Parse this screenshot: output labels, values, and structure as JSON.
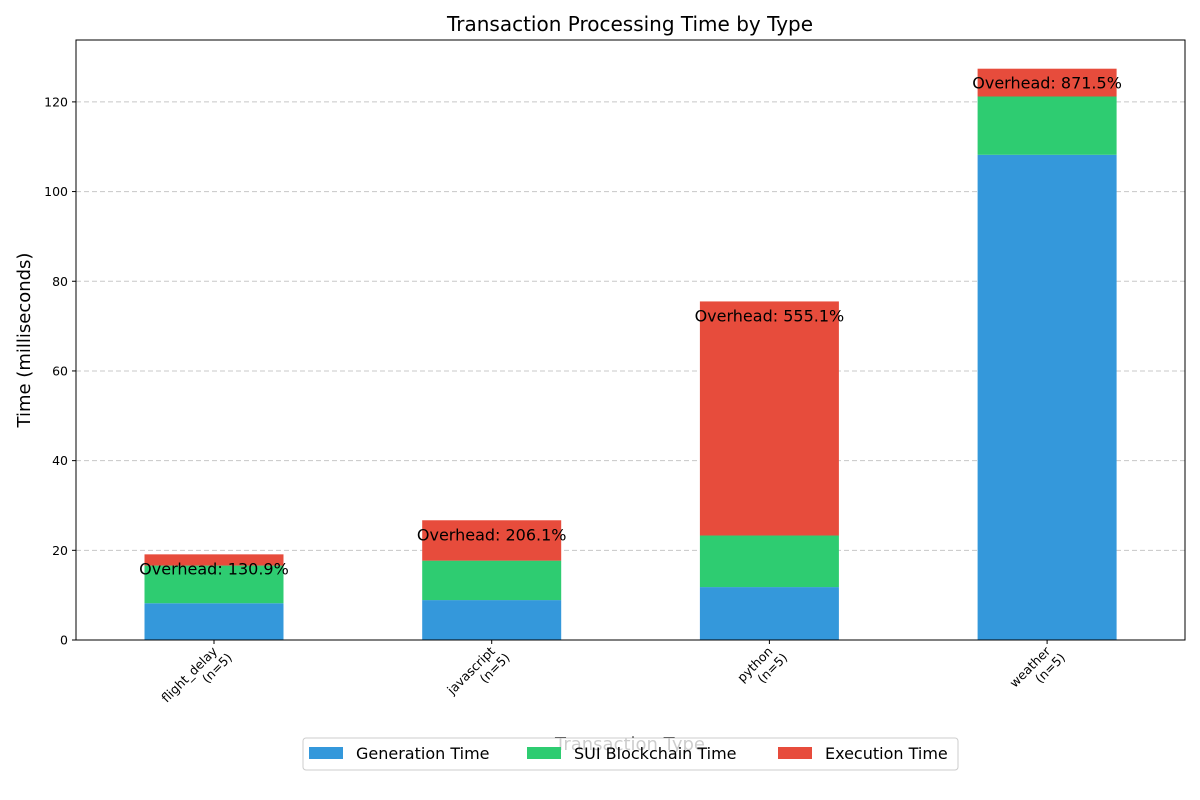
{
  "chart_data": {
    "type": "bar",
    "stacked": true,
    "title": "Transaction Processing Time by Type",
    "xlabel": "Transaction Type",
    "ylabel": "Time (milliseconds)",
    "categories": [
      "flight_delay\n(n=5)",
      "javascript\n(n=5)",
      "python\n(n=5)",
      "weather\n(n=5)"
    ],
    "series": [
      {
        "name": "Generation Time",
        "color": "#3498db",
        "values": [
          8.2,
          8.9,
          11.8,
          108.2
        ]
      },
      {
        "name": "SUI Blockchain Time",
        "color": "#2ecc71",
        "values": [
          8.4,
          8.8,
          11.5,
          13.0
        ]
      },
      {
        "name": "Execution Time",
        "color": "#e74c3c",
        "values": [
          2.5,
          9.0,
          52.2,
          6.2
        ]
      }
    ],
    "annotations": [
      "Overhead: 130.9%",
      "Overhead: 206.1%",
      "Overhead: 555.1%",
      "Overhead: 871.5%"
    ],
    "ylim": [
      0,
      133.8
    ],
    "yticks": [
      0,
      20,
      40,
      60,
      80,
      100,
      120
    ],
    "grid": "y",
    "legend": "bottom-center"
  }
}
